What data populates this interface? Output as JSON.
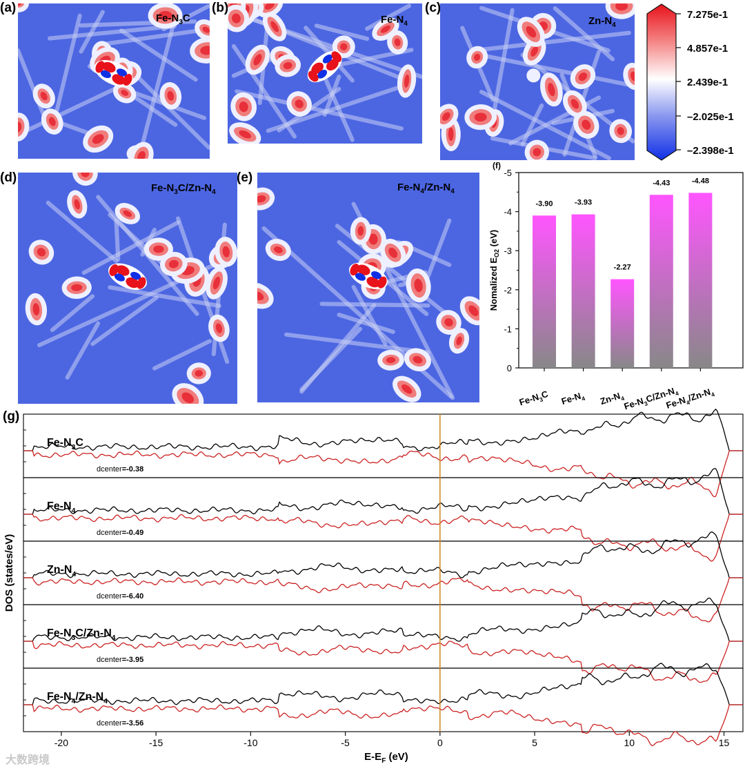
{
  "panels": {
    "a": {
      "label": "(a)",
      "title": "Fe-N3C"
    },
    "b": {
      "label": "(b)",
      "title": "Fe-N4"
    },
    "c": {
      "label": "(c)",
      "title": "Zn-N4"
    },
    "d": {
      "label": "(d)",
      "title": "Fe-N3C/Zn-N4"
    },
    "e": {
      "label": "(e)",
      "title": "Fe-N4/Zn-N4"
    },
    "f": {
      "label": "(f)"
    },
    "g": {
      "label": "(g)"
    }
  },
  "colorbar": {
    "ticks": [
      "7.275e-1",
      "4.857e-1",
      "2.439e-1",
      "-2.025e-1",
      "-2.398e-1"
    ],
    "colors": {
      "high": "#e8121b",
      "mid": "#ffffff",
      "low": "#1030e6"
    }
  },
  "chart_data": [
    {
      "type": "bar",
      "panel": "f",
      "categories": [
        "Fe-N3C",
        "Fe-N4",
        "Zn-N4",
        "Fe-N3C/Zn-N4",
        "Fe-N4/Zn-N4"
      ],
      "values": [
        -3.9,
        -3.93,
        -2.27,
        -4.43,
        -4.48
      ],
      "value_labels": [
        "-3.90",
        "-3.93",
        "-2.27",
        "-4.43",
        "-4.48"
      ],
      "ylabel": "Nomalized EO2 (eV)",
      "yticks": [
        "-5",
        "-4",
        "-3",
        "-2",
        "-1",
        "0"
      ],
      "ylim": [
        0,
        -5
      ],
      "colors": {
        "top": "#ff55ff",
        "bottom": "#888888"
      }
    },
    {
      "type": "line",
      "panel": "g",
      "xlabel": "E-EF (eV)",
      "ylabel": "DOS (states/eV)",
      "xlim": [
        -22,
        16
      ],
      "xticks": [
        "-20",
        "-15",
        "-10",
        "-5",
        "0",
        "5",
        "10",
        "15"
      ],
      "fermi_level": 0,
      "series_colors": {
        "spin_up": "#000000",
        "spin_down": "#cc2222"
      },
      "subplots": [
        {
          "name": "Fe-N3C",
          "d_center_label": "dcenter=-0.38"
        },
        {
          "name": "Fe-N4",
          "d_center_label": "dcenter=-0.49"
        },
        {
          "name": "Zn-N4",
          "d_center_label": "dcenter=-6.40"
        },
        {
          "name": "Fe-N3C/Zn-N4",
          "d_center_label": "dcenter=-3.95"
        },
        {
          "name": "Fe-N4/Zn-N4",
          "d_center_label": "dcenter=-3.56"
        }
      ]
    }
  ],
  "watermark": "大数跨境"
}
